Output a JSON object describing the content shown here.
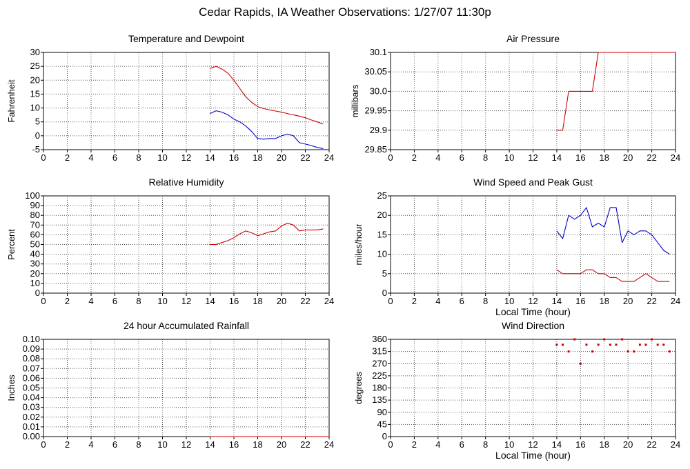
{
  "page": {
    "title": "Cedar Rapids, IA Weather Observations: 1/27/07 11:30p"
  },
  "colors": {
    "series1": "#cc0000",
    "series2": "#0000cc",
    "grid": "#000000"
  },
  "chart_data": [
    {
      "id": "temperature",
      "type": "line",
      "title": "Temperature and Dewpoint",
      "xlabel": "",
      "ylabel": "Fahrenheit",
      "xlim": [
        0,
        24
      ],
      "ylim": [
        -5,
        30
      ],
      "xticks": [
        "0",
        "2",
        "4",
        "6",
        "8",
        "10",
        "12",
        "14",
        "16",
        "18",
        "20",
        "22",
        "24"
      ],
      "yticks": [
        {
          "value": -5,
          "label": "-5"
        },
        {
          "value": 0,
          "label": "0"
        },
        {
          "value": 5,
          "label": "5"
        },
        {
          "value": 10,
          "label": "10"
        },
        {
          "value": 15,
          "label": "15"
        },
        {
          "value": 20,
          "label": "20"
        },
        {
          "value": 25,
          "label": "25"
        },
        {
          "value": 30,
          "label": "30"
        }
      ],
      "grid": true,
      "series": [
        {
          "color": "#cc0000",
          "style": "line",
          "x": [
            14.0,
            14.5,
            15.0,
            15.5,
            16.0,
            16.5,
            17.0,
            17.5,
            18.0,
            18.5,
            19.0,
            19.5,
            20.0,
            20.5,
            21.0,
            21.5,
            22.0,
            22.5,
            23.0,
            23.5
          ],
          "y": [
            24.2,
            25.0,
            24.0,
            22.5,
            20.0,
            17.0,
            14.0,
            12.0,
            10.5,
            9.8,
            9.3,
            8.9,
            8.5,
            8.0,
            7.5,
            7.1,
            6.5,
            5.7,
            5.0,
            4.2
          ]
        },
        {
          "color": "#0000cc",
          "style": "line",
          "x": [
            14.0,
            14.5,
            15.0,
            15.5,
            16.0,
            16.5,
            17.0,
            17.5,
            18.0,
            18.5,
            19.0,
            19.5,
            20.0,
            20.5,
            21.0,
            21.5,
            22.0,
            22.5,
            23.0,
            23.5
          ],
          "y": [
            8.0,
            9.0,
            8.5,
            7.5,
            6.0,
            5.0,
            3.5,
            1.5,
            -1.0,
            -1.2,
            -1.0,
            -1.0,
            0.0,
            0.6,
            0.0,
            -2.5,
            -3.0,
            -3.5,
            -4.2,
            -4.6
          ]
        }
      ]
    },
    {
      "id": "pressure",
      "type": "line",
      "title": "Air Pressure",
      "xlabel": "",
      "ylabel": "millibars",
      "xlim": [
        0,
        24
      ],
      "ylim": [
        29.85,
        30.1
      ],
      "xticks": [
        "0",
        "2",
        "4",
        "6",
        "8",
        "10",
        "12",
        "14",
        "16",
        "18",
        "20",
        "22",
        "24"
      ],
      "yticks": [
        {
          "value": 29.85,
          "label": "29.85"
        },
        {
          "value": 29.9,
          "label": "29.9"
        },
        {
          "value": 29.95,
          "label": "29.95"
        },
        {
          "value": 30.0,
          "label": "30.0"
        },
        {
          "value": 30.05,
          "label": "30.05"
        },
        {
          "value": 30.1,
          "label": "30.1"
        }
      ],
      "grid": true,
      "series": [
        {
          "color": "#cc0000",
          "style": "line",
          "x": [
            14.0,
            14.5,
            15.0,
            15.5,
            16.0,
            16.5,
            17.0,
            17.5,
            18.0,
            18.5,
            19.0,
            19.5,
            20.0,
            20.5,
            21.0,
            21.5,
            22.0,
            22.5,
            23.0,
            23.5,
            24.0
          ],
          "y": [
            29.9,
            29.9,
            30.0,
            30.0,
            30.0,
            30.0,
            30.0,
            30.1,
            30.1,
            30.1,
            30.1,
            30.1,
            30.1,
            30.1,
            30.1,
            30.1,
            30.1,
            30.1,
            30.1,
            30.1,
            30.1
          ]
        }
      ]
    },
    {
      "id": "humidity",
      "type": "line",
      "title": "Relative Humidity",
      "xlabel": "",
      "ylabel": "Percent",
      "xlim": [
        0,
        24
      ],
      "ylim": [
        0,
        100
      ],
      "xticks": [
        "0",
        "2",
        "4",
        "6",
        "8",
        "10",
        "12",
        "14",
        "16",
        "18",
        "20",
        "22",
        "24"
      ],
      "yticks": [
        {
          "value": 0,
          "label": "0"
        },
        {
          "value": 10,
          "label": "10"
        },
        {
          "value": 20,
          "label": "20"
        },
        {
          "value": 30,
          "label": "30"
        },
        {
          "value": 40,
          "label": "40"
        },
        {
          "value": 50,
          "label": "50"
        },
        {
          "value": 60,
          "label": "60"
        },
        {
          "value": 70,
          "label": "70"
        },
        {
          "value": 80,
          "label": "80"
        },
        {
          "value": 90,
          "label": "90"
        },
        {
          "value": 100,
          "label": "100"
        }
      ],
      "grid": true,
      "series": [
        {
          "color": "#cc0000",
          "style": "line",
          "x": [
            14.0,
            14.5,
            15.0,
            15.5,
            16.0,
            16.5,
            17.0,
            17.5,
            18.0,
            18.5,
            19.0,
            19.5,
            20.0,
            20.5,
            21.0,
            21.5,
            22.0,
            22.5,
            23.0,
            23.5
          ],
          "y": [
            50,
            50,
            52,
            54,
            57,
            61,
            64,
            62,
            59,
            61,
            63,
            64,
            69,
            72,
            70,
            64,
            65,
            65,
            65,
            66
          ]
        }
      ]
    },
    {
      "id": "wind",
      "type": "line",
      "title": "Wind Speed and Peak Gust",
      "xlabel": "Local Time (hour)",
      "ylabel": "miles/hour",
      "xlim": [
        0,
        24
      ],
      "ylim": [
        0,
        25
      ],
      "xticks": [
        "0",
        "2",
        "4",
        "6",
        "8",
        "10",
        "12",
        "14",
        "16",
        "18",
        "20",
        "22",
        "24"
      ],
      "yticks": [
        {
          "value": 0,
          "label": "0"
        },
        {
          "value": 5,
          "label": "5"
        },
        {
          "value": 10,
          "label": "10"
        },
        {
          "value": 15,
          "label": "15"
        },
        {
          "value": 20,
          "label": "20"
        },
        {
          "value": 25,
          "label": "25"
        }
      ],
      "grid": true,
      "series": [
        {
          "color": "#0000cc",
          "style": "line",
          "x": [
            14.0,
            14.5,
            15.0,
            15.5,
            16.0,
            16.5,
            17.0,
            17.5,
            18.0,
            18.5,
            19.0,
            19.5,
            20.0,
            20.5,
            21.0,
            21.5,
            22.0,
            22.5,
            23.0,
            23.5
          ],
          "y": [
            16,
            14,
            20,
            19,
            20,
            22,
            17,
            18,
            17,
            22,
            22,
            13,
            16,
            15,
            16,
            16,
            15,
            13,
            11,
            10
          ]
        },
        {
          "color": "#cc0000",
          "style": "line",
          "x": [
            14.0,
            14.5,
            15.0,
            15.5,
            16.0,
            16.5,
            17.0,
            17.5,
            18.0,
            18.5,
            19.0,
            19.5,
            20.0,
            20.5,
            21.0,
            21.5,
            22.0,
            22.5,
            23.0,
            23.5
          ],
          "y": [
            6,
            5,
            5,
            5,
            5,
            6,
            6,
            5,
            5,
            4,
            4,
            3,
            3,
            3,
            4,
            5,
            4,
            3,
            3,
            3
          ]
        }
      ]
    },
    {
      "id": "rainfall",
      "type": "line",
      "title": "24 hour Accumulated Rainfall",
      "xlabel": "",
      "ylabel": "Inches",
      "xlim": [
        0,
        24
      ],
      "ylim": [
        0,
        0.1
      ],
      "xticks": [
        "0",
        "2",
        "4",
        "6",
        "8",
        "10",
        "12",
        "14",
        "16",
        "18",
        "20",
        "22",
        "24"
      ],
      "yticks": [
        {
          "value": 0.0,
          "label": "0.00"
        },
        {
          "value": 0.01,
          "label": "0.01"
        },
        {
          "value": 0.02,
          "label": "0.02"
        },
        {
          "value": 0.03,
          "label": "0.03"
        },
        {
          "value": 0.04,
          "label": "0.04"
        },
        {
          "value": 0.05,
          "label": "0.05"
        },
        {
          "value": 0.06,
          "label": "0.06"
        },
        {
          "value": 0.07,
          "label": "0.07"
        },
        {
          "value": 0.08,
          "label": "0.08"
        },
        {
          "value": 0.09,
          "label": "0.09"
        },
        {
          "value": 0.1,
          "label": "0.10"
        }
      ],
      "grid": true,
      "series": [
        {
          "color": "#cc0000",
          "style": "line",
          "x": [
            14.0,
            24.0
          ],
          "y": [
            0.0,
            0.0
          ]
        }
      ]
    },
    {
      "id": "direction",
      "type": "scatter",
      "title": "Wind Direction",
      "xlabel": "Local Time (hour)",
      "ylabel": "degrees",
      "xlim": [
        0,
        24
      ],
      "ylim": [
        0,
        360
      ],
      "xticks": [
        "0",
        "2",
        "4",
        "6",
        "8",
        "10",
        "12",
        "14",
        "16",
        "18",
        "20",
        "22",
        "24"
      ],
      "yticks": [
        {
          "value": 0,
          "label": "0"
        },
        {
          "value": 45,
          "label": "45"
        },
        {
          "value": 90,
          "label": "90"
        },
        {
          "value": 135,
          "label": "135"
        },
        {
          "value": 180,
          "label": "180"
        },
        {
          "value": 225,
          "label": "225"
        },
        {
          "value": 270,
          "label": "270"
        },
        {
          "value": 315,
          "label": "315"
        },
        {
          "value": 360,
          "label": "360"
        }
      ],
      "grid": true,
      "series": [
        {
          "color": "#cc0000",
          "style": "points",
          "x": [
            14.0,
            14.5,
            15.0,
            15.5,
            16.0,
            16.5,
            17.0,
            17.5,
            18.0,
            18.5,
            19.0,
            19.5,
            20.0,
            20.5,
            21.0,
            21.5,
            22.0,
            22.5,
            23.0,
            23.5
          ],
          "y": [
            340,
            340,
            315,
            360,
            270,
            340,
            315,
            340,
            360,
            340,
            340,
            360,
            315,
            315,
            340,
            340,
            360,
            340,
            340,
            315
          ]
        }
      ]
    }
  ]
}
